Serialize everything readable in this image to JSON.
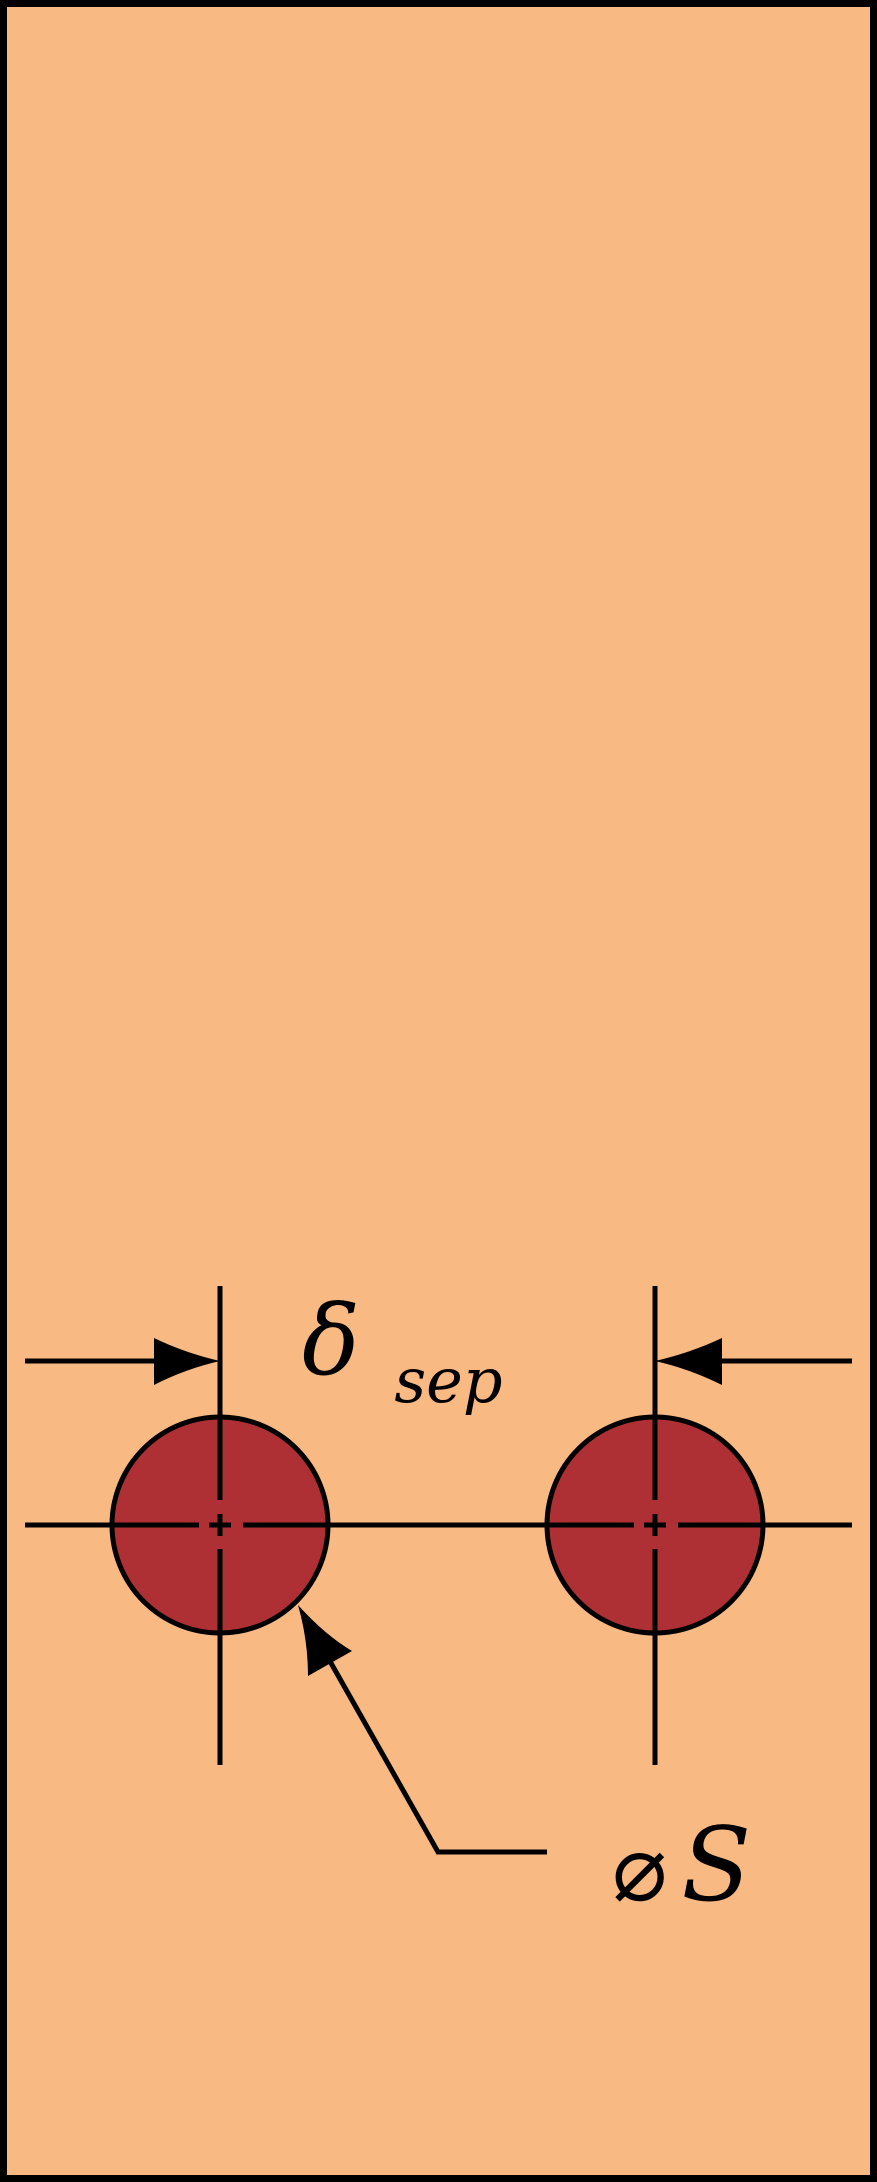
{
  "colors": {
    "plate_fill": "#F9B983",
    "hole_fill": "#AE3034",
    "stroke": "#000000"
  },
  "labels": {
    "separation_symbol": "δ",
    "separation_subscript": "sep",
    "diameter_symbol": "⌀",
    "diameter_label": "S"
  }
}
